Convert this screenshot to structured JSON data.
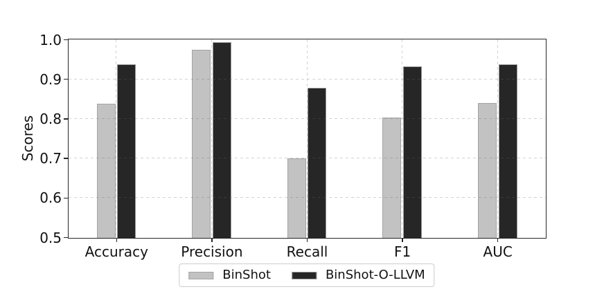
{
  "chart_data": {
    "type": "bar",
    "title": "",
    "xlabel": "",
    "ylabel": "Scores",
    "categories": [
      "Accuracy",
      "Precision",
      "Recall",
      "F1",
      "AUC"
    ],
    "series": [
      {
        "name": "BinShot",
        "color": "#c2c2c2",
        "edge_color": "#a3a3a3",
        "values": [
          0.839,
          0.976,
          0.701,
          0.805,
          0.841
        ]
      },
      {
        "name": "BinShot-O-LLVM",
        "color": "#262626",
        "edge_color": "#999999",
        "values": [
          0.938,
          0.995,
          0.88,
          0.933,
          0.938
        ]
      }
    ],
    "ylim": [
      0.5,
      1.0
    ],
    "yticks": [
      0.5,
      0.6,
      0.7,
      0.8,
      0.9,
      1.0
    ],
    "ytick_labels": [
      "0.5",
      "0.6",
      "0.7",
      "0.8",
      "0.9",
      "1.0"
    ],
    "grid": true,
    "grid_style": "dashed",
    "grid_above_bars": true,
    "legend_position": "bottom-center"
  },
  "colors": {
    "background": "#ffffff",
    "spine": "#262626",
    "grid": "#696969",
    "text": "#111111",
    "legend_border": "#cccccc"
  }
}
